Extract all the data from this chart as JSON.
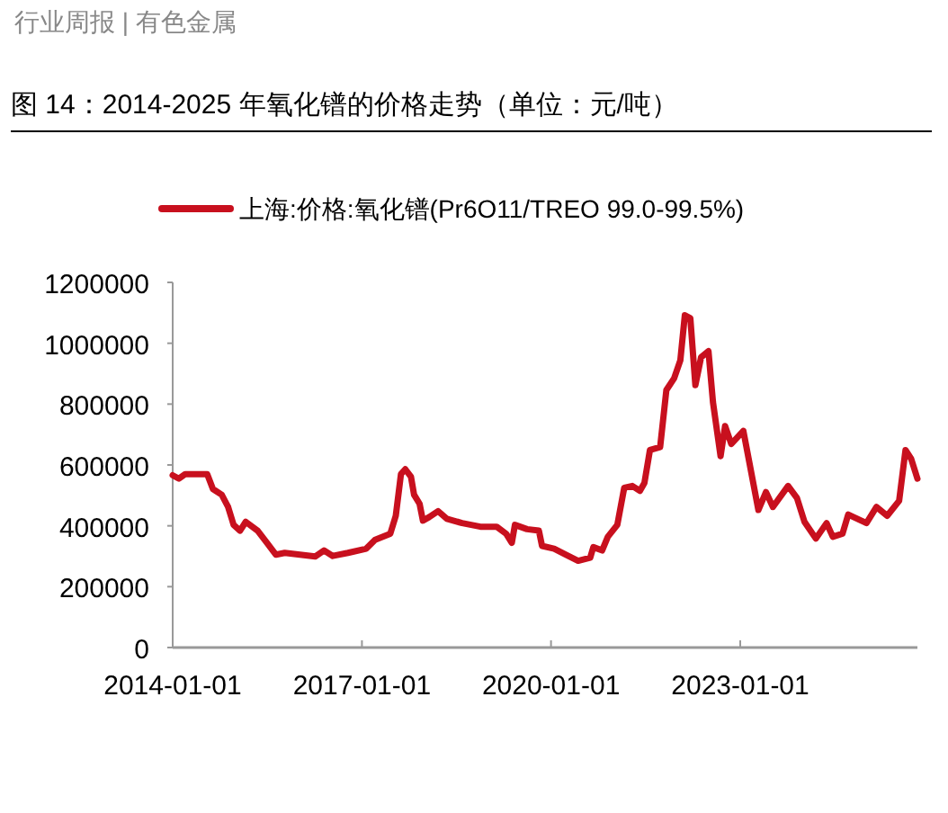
{
  "chart_data": {
    "type": "line",
    "title": "图 14：2014-2025 年氧化镨的价格走势（单位：元/吨）",
    "annotations": [
      "行业周报 | 有色金属"
    ],
    "x": [
      "2014-01-01",
      "2014-02-06",
      "2014-03-15",
      "2014-07-20",
      "2014-08-22",
      "2014-10-12",
      "2014-11-18",
      "2014-12-20",
      "2015-01-26",
      "2015-02-28",
      "2015-05-08",
      "2015-07-01",
      "2015-08-22",
      "2015-10-12",
      "2016-01-08",
      "2016-04-05",
      "2016-05-26",
      "2016-07-16",
      "2016-10-12",
      "2017-01-26",
      "2017-03-18",
      "2017-06-14",
      "2017-07-16",
      "2017-08-15",
      "2017-09-09",
      "2017-10-12",
      "2017-10-30",
      "2017-12-01",
      "2017-12-20",
      "2018-01-26",
      "2018-03-18",
      "2018-05-08",
      "2018-08-04",
      "2018-11-18",
      "2019-02-20",
      "2019-04-16",
      "2019-05-19",
      "2019-06-06",
      "2019-08-15",
      "2019-10-23",
      "2019-11-10",
      "2020-01-19",
      "2020-03-28",
      "2020-06-06",
      "2020-08-15",
      "2020-09-02",
      "2020-10-23",
      "2020-11-25",
      "2021-01-19",
      "2021-02-28",
      "2021-04-16",
      "2021-05-30",
      "2021-06-25",
      "2021-07-27",
      "2021-09-24",
      "2021-10-30",
      "2021-12-14",
      "2022-01-19",
      "2022-02-14",
      "2022-03-18",
      "2022-04-16",
      "2022-05-19",
      "2022-07-01",
      "2022-07-27",
      "2022-09-09",
      "2022-10-05",
      "2022-11-10",
      "2023-01-19",
      "2023-04-16",
      "2023-05-30",
      "2023-07-09",
      "2023-10-05",
      "2023-11-25",
      "2024-01-08",
      "2024-03-14",
      "2024-05-15",
      "2024-06-20",
      "2024-08-15",
      "2024-09-17",
      "2025-01-01",
      "2025-02-28",
      "2025-05-01",
      "2025-07-09",
      "2025-08-15",
      "2025-09-17",
      "2025-10-23"
    ],
    "series": [
      {
        "name": "上海:价格:氧化镨(Pr6O11/TREO 99.0-99.5%)",
        "color": "#c8101e",
        "values": [
          566000,
          555000,
          570000,
          570000,
          521000,
          502000,
          462000,
          403000,
          384000,
          413000,
          384000,
          344000,
          305000,
          311000,
          305000,
          299000,
          319000,
          301000,
          311000,
          325000,
          354000,
          374000,
          433000,
          570000,
          586000,
          561000,
          502000,
          472000,
          417000,
          429000,
          448000,
          423000,
          409000,
          397000,
          397000,
          374000,
          344000,
          403000,
          389000,
          384000,
          334000,
          325000,
          305000,
          285000,
          295000,
          330000,
          319000,
          364000,
          403000,
          525000,
          531000,
          515000,
          541000,
          649000,
          659000,
          846000,
          885000,
          944000,
          1092000,
          1082000,
          862000,
          954000,
          974000,
          806000,
          629000,
          728000,
          669000,
          712000,
          452000,
          511000,
          462000,
          531000,
          492000,
          413000,
          358000,
          409000,
          364000,
          374000,
          437000,
          409000,
          462000,
          433000,
          482000,
          649000,
          620000,
          555000
        ]
      }
    ],
    "xlim": [
      "2014-01-01",
      "2025-10-23"
    ],
    "xticks": [
      "2014-01-01",
      "2017-01-01",
      "2020-01-01",
      "2023-01-01"
    ],
    "ylim": [
      0,
      1200000
    ],
    "yticks": [
      0,
      200000,
      400000,
      600000,
      800000,
      1000000,
      1200000
    ],
    "legend": "top",
    "marker": "none",
    "line_style": "solid"
  }
}
